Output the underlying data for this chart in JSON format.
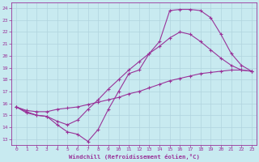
{
  "xlabel": "Windchill (Refroidissement éolien,°C)",
  "xlim": [
    -0.5,
    23.5
  ],
  "ylim": [
    12.5,
    24.5
  ],
  "xticks": [
    0,
    1,
    2,
    3,
    4,
    5,
    6,
    7,
    8,
    9,
    10,
    11,
    12,
    13,
    14,
    15,
    16,
    17,
    18,
    19,
    20,
    21,
    22,
    23
  ],
  "yticks": [
    13,
    14,
    15,
    16,
    17,
    18,
    19,
    20,
    21,
    22,
    23,
    24
  ],
  "background_color": "#c8eaf0",
  "grid_color": "#b0d4de",
  "line_color": "#993399",
  "line1_x": [
    0,
    1,
    2,
    3,
    4,
    5,
    6,
    7,
    8,
    9,
    10,
    11,
    12,
    13,
    14,
    15,
    16,
    17,
    18,
    19,
    20,
    21,
    22,
    23
  ],
  "line1_y": [
    15.7,
    15.3,
    15.0,
    14.9,
    14.2,
    13.6,
    13.4,
    12.8,
    13.8,
    15.5,
    17.0,
    18.5,
    18.8,
    20.2,
    21.2,
    23.8,
    23.9,
    23.9,
    23.8,
    23.2,
    21.8,
    20.2,
    19.2,
    18.7
  ],
  "line2_x": [
    0,
    1,
    2,
    3,
    4,
    5,
    6,
    7,
    8,
    9,
    10,
    11,
    12,
    13,
    14,
    15,
    16,
    17,
    18,
    19,
    20,
    21,
    22,
    23
  ],
  "line2_y": [
    15.7,
    15.4,
    15.3,
    15.3,
    15.5,
    15.6,
    15.7,
    15.9,
    16.1,
    16.3,
    16.5,
    16.8,
    17.0,
    17.3,
    17.6,
    17.9,
    18.1,
    18.3,
    18.5,
    18.6,
    18.7,
    18.8,
    18.8,
    18.7
  ],
  "line3_x": [
    0,
    1,
    2,
    3,
    4,
    5,
    6,
    7,
    8,
    9,
    10,
    11,
    12,
    13,
    14,
    15,
    16,
    17,
    18,
    19,
    20,
    21,
    22,
    23
  ],
  "line3_y": [
    15.7,
    15.2,
    15.0,
    14.9,
    14.5,
    14.2,
    14.6,
    15.5,
    16.3,
    17.2,
    18.0,
    18.8,
    19.5,
    20.2,
    20.8,
    21.5,
    22.0,
    21.8,
    21.2,
    20.5,
    19.8,
    19.2,
    18.8,
    18.7
  ]
}
